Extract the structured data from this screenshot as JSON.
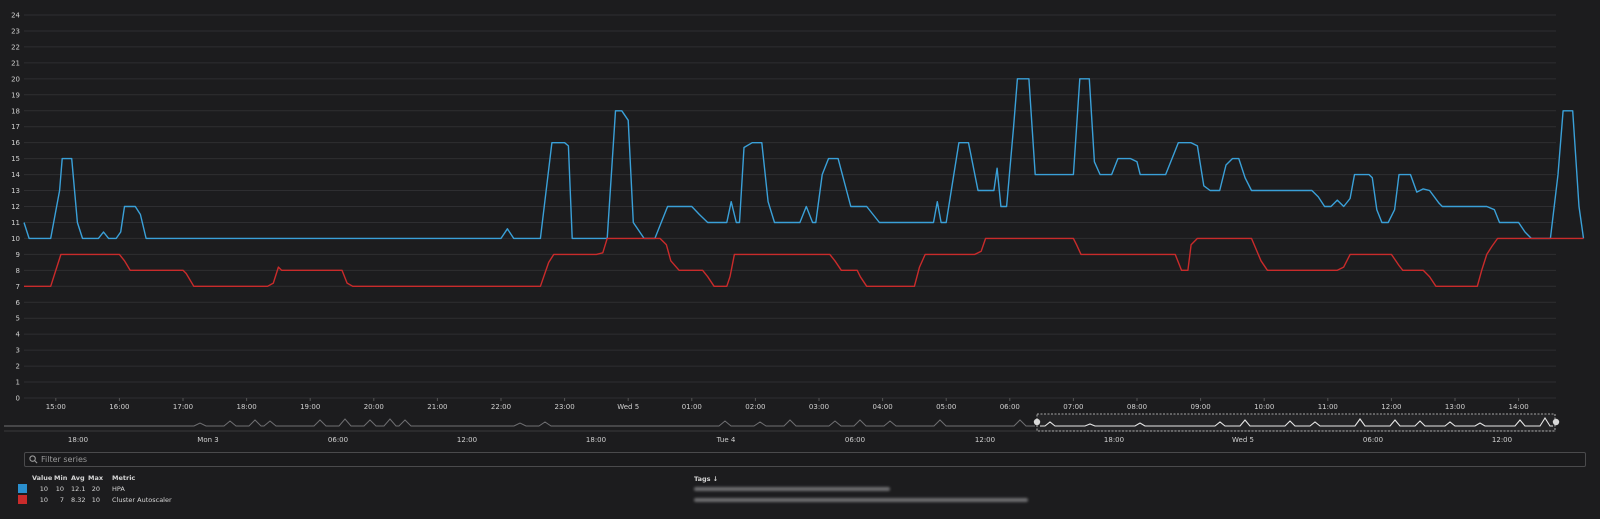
{
  "chart_data": {
    "type": "line",
    "ylim": [
      0,
      24
    ],
    "y_ticks": [
      "0",
      "1",
      "2",
      "3",
      "4",
      "5",
      "6",
      "7",
      "8",
      "9",
      "10",
      "11",
      "12",
      "13",
      "14",
      "15",
      "16",
      "17",
      "18",
      "19",
      "20",
      "21",
      "22",
      "23",
      "24"
    ],
    "x_ticks": [
      "15:00",
      "16:00",
      "17:00",
      "18:00",
      "19:00",
      "20:00",
      "21:00",
      "22:00",
      "23:00",
      "Wed 5",
      "01:00",
      "02:00",
      "03:00",
      "04:00",
      "05:00",
      "06:00",
      "07:00",
      "08:00",
      "09:00",
      "10:00",
      "11:00",
      "12:00",
      "13:00",
      "14:00"
    ],
    "x_start": "14:30",
    "x_end": "14:30",
    "grid": true,
    "series": [
      {
        "name": "HPA",
        "color": "#3aa0d8",
        "points": [
          [
            0,
            11
          ],
          [
            0.08,
            10
          ],
          [
            0.42,
            10
          ],
          [
            0.56,
            13
          ],
          [
            0.6,
            15
          ],
          [
            0.75,
            15
          ],
          [
            0.84,
            11
          ],
          [
            0.92,
            10
          ],
          [
            1.17,
            10
          ],
          [
            1.25,
            10.4
          ],
          [
            1.33,
            10
          ],
          [
            1.45,
            10
          ],
          [
            1.52,
            10.4
          ],
          [
            1.58,
            12
          ],
          [
            1.75,
            12
          ],
          [
            1.83,
            11.5
          ],
          [
            1.92,
            10
          ],
          [
            7.5,
            10
          ],
          [
            7.6,
            10.6
          ],
          [
            7.7,
            10
          ],
          [
            8.12,
            10
          ],
          [
            8.3,
            16
          ],
          [
            8.5,
            16
          ],
          [
            8.56,
            15.8
          ],
          [
            8.62,
            10
          ],
          [
            9.17,
            10
          ],
          [
            9.3,
            18
          ],
          [
            9.4,
            18
          ],
          [
            9.5,
            17.4
          ],
          [
            9.58,
            11
          ],
          [
            9.75,
            10
          ],
          [
            9.92,
            10
          ],
          [
            10.12,
            12
          ],
          [
            10.5,
            12
          ],
          [
            10.62,
            11.5
          ],
          [
            10.75,
            11
          ],
          [
            11.05,
            11
          ],
          [
            11.12,
            12.3
          ],
          [
            11.2,
            11
          ],
          [
            11.25,
            11
          ],
          [
            11.32,
            15.7
          ],
          [
            11.45,
            16
          ],
          [
            11.6,
            16
          ],
          [
            11.7,
            12.3
          ],
          [
            11.8,
            11
          ],
          [
            12.2,
            11
          ],
          [
            12.3,
            12
          ],
          [
            12.4,
            11
          ],
          [
            12.45,
            11
          ],
          [
            12.55,
            14
          ],
          [
            12.65,
            15
          ],
          [
            12.8,
            15
          ],
          [
            13.0,
            12
          ],
          [
            13.25,
            12
          ],
          [
            13.45,
            11
          ],
          [
            14.3,
            11
          ],
          [
            14.36,
            12.3
          ],
          [
            14.42,
            11
          ],
          [
            14.5,
            11
          ],
          [
            14.62,
            14
          ],
          [
            14.7,
            16
          ],
          [
            14.85,
            16
          ],
          [
            15.0,
            13
          ],
          [
            15.25,
            13
          ],
          [
            15.3,
            14.4
          ],
          [
            15.36,
            12
          ],
          [
            15.45,
            12
          ],
          [
            15.56,
            17
          ],
          [
            15.62,
            20
          ],
          [
            15.8,
            20
          ],
          [
            15.9,
            14
          ],
          [
            16.2,
            14
          ],
          [
            16.5,
            14
          ],
          [
            16.6,
            20
          ],
          [
            16.75,
            20
          ],
          [
            16.83,
            14.8
          ],
          [
            16.92,
            14
          ],
          [
            17.1,
            14
          ],
          [
            17.2,
            15
          ],
          [
            17.4,
            15
          ],
          [
            17.5,
            14.8
          ],
          [
            17.55,
            14
          ],
          [
            17.95,
            14
          ],
          [
            18.1,
            15.5
          ],
          [
            18.15,
            16
          ],
          [
            18.35,
            16
          ],
          [
            18.45,
            15.8
          ],
          [
            18.55,
            13.3
          ],
          [
            18.65,
            13
          ],
          [
            18.8,
            13
          ],
          [
            18.9,
            14.6
          ],
          [
            19.0,
            15
          ],
          [
            19.1,
            15
          ],
          [
            19.2,
            13.8
          ],
          [
            19.3,
            13
          ],
          [
            20.25,
            13
          ],
          [
            20.35,
            12.6
          ],
          [
            20.45,
            12
          ],
          [
            20.55,
            12
          ],
          [
            20.65,
            12.4
          ],
          [
            20.75,
            12
          ],
          [
            20.85,
            12.5
          ],
          [
            20.92,
            14
          ],
          [
            21.15,
            14
          ],
          [
            21.2,
            13.8
          ],
          [
            21.27,
            11.8
          ],
          [
            21.35,
            11
          ],
          [
            21.45,
            11
          ],
          [
            21.55,
            11.8
          ],
          [
            21.62,
            14
          ],
          [
            21.8,
            14
          ],
          [
            21.9,
            12.9
          ],
          [
            22.0,
            13.1
          ],
          [
            22.1,
            13
          ],
          [
            22.25,
            12.2
          ],
          [
            22.3,
            12
          ],
          [
            23.0,
            12
          ],
          [
            23.12,
            11.8
          ],
          [
            23.2,
            11
          ],
          [
            23.5,
            11
          ],
          [
            23.6,
            10.4
          ],
          [
            23.7,
            10
          ],
          [
            24.0,
            10
          ],
          [
            24.12,
            14
          ],
          [
            24.2,
            18
          ],
          [
            24.35,
            18
          ],
          [
            24.45,
            12
          ],
          [
            24.52,
            10
          ]
        ]
      },
      {
        "name": "Cluster Autoscaler",
        "color": "#c92b2b",
        "points": [
          [
            0,
            7
          ],
          [
            0.42,
            7
          ],
          [
            0.58,
            9
          ],
          [
            1.5,
            9
          ],
          [
            1.58,
            8.6
          ],
          [
            1.67,
            8
          ],
          [
            2.5,
            8
          ],
          [
            2.55,
            7.8
          ],
          [
            2.67,
            7
          ],
          [
            3.83,
            7
          ],
          [
            3.92,
            7.2
          ],
          [
            4.0,
            8.2
          ],
          [
            4.05,
            8
          ],
          [
            4.45,
            8
          ],
          [
            5.0,
            8
          ],
          [
            5.08,
            7.2
          ],
          [
            5.17,
            7
          ],
          [
            8.12,
            7
          ],
          [
            8.25,
            8.5
          ],
          [
            8.33,
            9
          ],
          [
            9.0,
            9
          ],
          [
            9.1,
            9.1
          ],
          [
            9.17,
            10
          ],
          [
            10.0,
            10
          ],
          [
            10.1,
            9.6
          ],
          [
            10.17,
            8.6
          ],
          [
            10.3,
            8
          ],
          [
            10.67,
            8
          ],
          [
            10.75,
            7.6
          ],
          [
            10.85,
            7
          ],
          [
            11.05,
            7
          ],
          [
            11.1,
            7.6
          ],
          [
            11.17,
            9
          ],
          [
            12.5,
            9
          ],
          [
            12.67,
            9
          ],
          [
            12.75,
            8.6
          ],
          [
            12.85,
            8
          ],
          [
            13.1,
            8
          ],
          [
            13.15,
            7.6
          ],
          [
            13.25,
            7
          ],
          [
            14.0,
            7
          ],
          [
            14.08,
            8.2
          ],
          [
            14.17,
            9
          ],
          [
            14.95,
            9
          ],
          [
            15.05,
            9.2
          ],
          [
            15.12,
            10
          ],
          [
            16.5,
            10
          ],
          [
            16.55,
            9.6
          ],
          [
            16.62,
            9
          ],
          [
            17.9,
            9
          ],
          [
            18.0,
            9
          ],
          [
            18.1,
            9
          ],
          [
            18.2,
            8
          ],
          [
            18.3,
            8
          ],
          [
            18.35,
            9.6
          ],
          [
            18.45,
            10
          ],
          [
            19.3,
            10
          ],
          [
            19.45,
            8.6
          ],
          [
            19.55,
            8
          ],
          [
            20.6,
            8
          ],
          [
            20.65,
            8
          ],
          [
            20.75,
            8.2
          ],
          [
            20.85,
            9
          ],
          [
            21.5,
            9
          ],
          [
            21.62,
            8.3
          ],
          [
            21.68,
            8
          ],
          [
            22.0,
            8
          ],
          [
            22.1,
            7.6
          ],
          [
            22.2,
            7
          ],
          [
            22.75,
            7
          ],
          [
            22.85,
            7
          ],
          [
            22.92,
            8
          ],
          [
            23.0,
            9
          ],
          [
            23.08,
            9.5
          ],
          [
            23.17,
            10
          ],
          [
            24.52,
            10
          ]
        ]
      }
    ]
  },
  "navigator": {
    "ticks": [
      "18:00",
      "Mon 3",
      "06:00",
      "12:00",
      "18:00",
      "Tue 4",
      "06:00",
      "12:00",
      "18:00",
      "Wed 5",
      "06:00",
      "12:00"
    ]
  },
  "filter": {
    "placeholder": "Filter series"
  },
  "legend": {
    "headers": {
      "value": "Value",
      "min": "Min",
      "avg": "Avg",
      "max": "Max",
      "metric": "Metric",
      "tags": "Tags ↓"
    },
    "rows": [
      {
        "color": "#2a8fce",
        "value": "10",
        "min": "10",
        "avg": "12.1",
        "max": "20",
        "metric": "HPA"
      },
      {
        "color": "#c92b2b",
        "value": "10",
        "min": "7",
        "avg": "8.32",
        "max": "10",
        "metric": "Cluster Autoscaler"
      }
    ]
  }
}
